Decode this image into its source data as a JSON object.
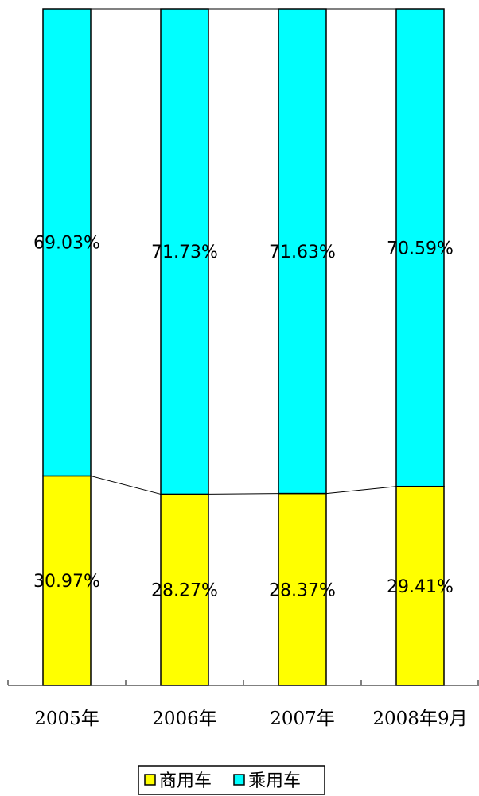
{
  "chart_data": {
    "type": "bar",
    "stacked": "percent",
    "categories": [
      "2005年",
      "2006年",
      "2007年",
      "2008年9月"
    ],
    "series": [
      {
        "name": "商用车",
        "color": "#ffff00",
        "values": [
          30.97,
          28.27,
          28.37,
          29.41
        ],
        "labels": [
          "30.97%",
          "28.27%",
          "28.37%",
          "29.41%"
        ]
      },
      {
        "name": "乘用车",
        "color": "#00ffff",
        "values": [
          69.03,
          71.73,
          71.63,
          70.59
        ],
        "labels": [
          "69.03%",
          "71.73%",
          "71.63%",
          "70.59%"
        ]
      }
    ],
    "ylim": [
      0,
      100
    ],
    "series_lines": true,
    "legend": "bottom-center",
    "grid": false
  }
}
